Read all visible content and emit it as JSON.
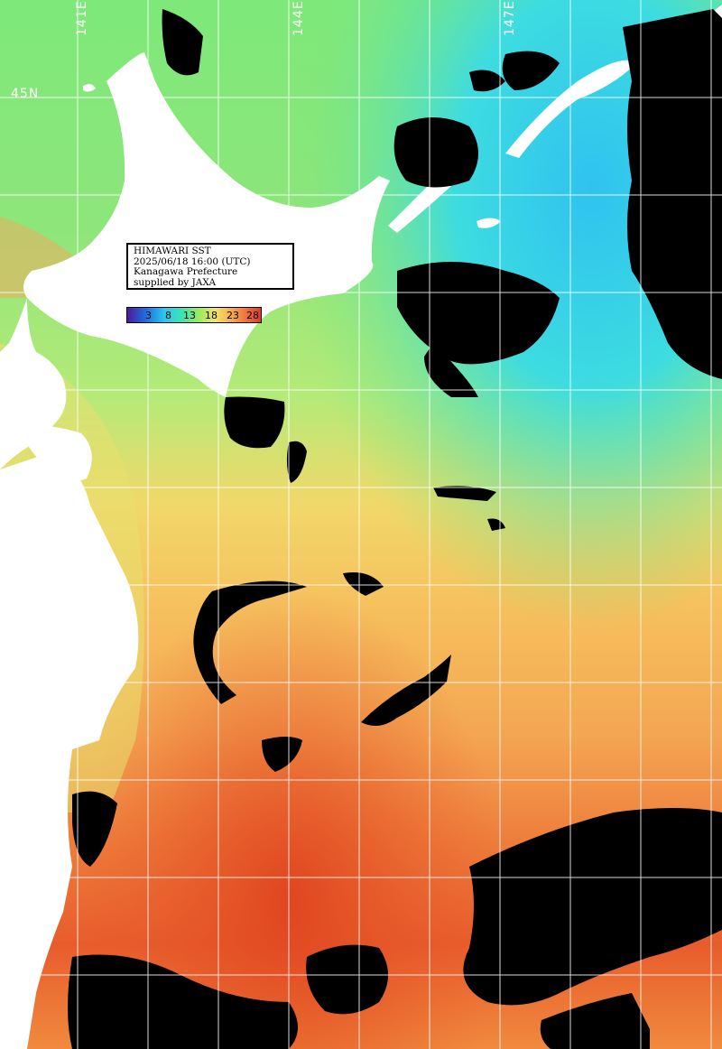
{
  "map": {
    "title_lines": [
      "HIMAWARI SST",
      "2025/06/18 16:00 (UTC)",
      "Kanagawa Prefecture",
      "supplied by JAXA"
    ],
    "longitude_labels": [
      "141E",
      "144E",
      "147E"
    ],
    "latitude_labels": [
      "45N"
    ],
    "colorbar": {
      "ticks": [
        "3",
        "8",
        "13",
        "18",
        "23",
        "28"
      ],
      "colors": [
        "#4b1a9c",
        "#1f6fe0",
        "#27c9f0",
        "#3fe6b0",
        "#a7ea5a",
        "#f5e46a",
        "#f5b550",
        "#f0783a",
        "#e03a26"
      ]
    },
    "colors": {
      "land": "#ffffff",
      "cloud": "#000000",
      "grid": "#ffffff",
      "cold_water": "#3ad8e8",
      "mid_water": "#8ee46a",
      "warm_water": "#f4b050",
      "hot_water": "#e8592c"
    }
  }
}
